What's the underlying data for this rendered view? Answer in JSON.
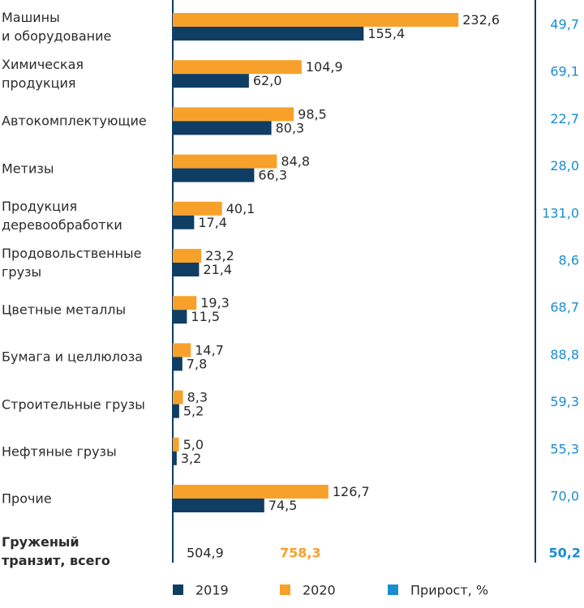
{
  "chart_data": {
    "type": "bar",
    "orientation": "horizontal",
    "categories": [
      "Машины\nи оборудование",
      "Химическая\nпродукция",
      "Автокомплектующие",
      "Метизы",
      "Продукция\nдеревообработки",
      "Продовольственные\nгрузы",
      "Цветные металлы",
      "Бумага и целлюлоза",
      "Строительные грузы",
      "Нефтяные грузы",
      "Прочие"
    ],
    "xlim": [
      0,
      280
    ],
    "series": [
      {
        "name": "2019",
        "color": "#0f3d63",
        "values": [
          155.4,
          62.0,
          80.3,
          66.3,
          17.4,
          21.4,
          11.5,
          7.8,
          5.2,
          3.2,
          74.5
        ],
        "value_labels": [
          "155,4",
          "62,0",
          "80,3",
          "66,3",
          "17,4",
          "21,4",
          "11,5",
          "7,8",
          "5,2",
          "3,2",
          "74,5"
        ],
        "total": 504.9,
        "total_label": "504,9"
      },
      {
        "name": "2020",
        "color": "#f7a12b",
        "values": [
          232.6,
          104.9,
          98.5,
          84.8,
          40.1,
          23.2,
          19.3,
          14.7,
          8.3,
          5.0,
          126.7
        ],
        "value_labels": [
          "232,6",
          "104,9",
          "98,5",
          "84,8",
          "40,1",
          "23,2",
          "19,3",
          "14,7",
          "8,3",
          "5,0",
          "126,7"
        ],
        "total": 758.3,
        "total_label": "758,3"
      },
      {
        "name": "Прирост, %",
        "color": "#1a8ccf",
        "values": [
          49.7,
          69.1,
          22.7,
          28.0,
          131.0,
          8.6,
          68.7,
          88.8,
          59.3,
          55.3,
          70.0
        ],
        "value_labels": [
          "49,7",
          "69,1",
          "22,7",
          "28,0",
          "131,0",
          "8,6",
          "68,7",
          "88,8",
          "59,3",
          "55,3",
          "70,0"
        ],
        "total": 50.2,
        "total_label": "50,2"
      }
    ],
    "total_category": "Груженый\nтранзит, всего"
  }
}
